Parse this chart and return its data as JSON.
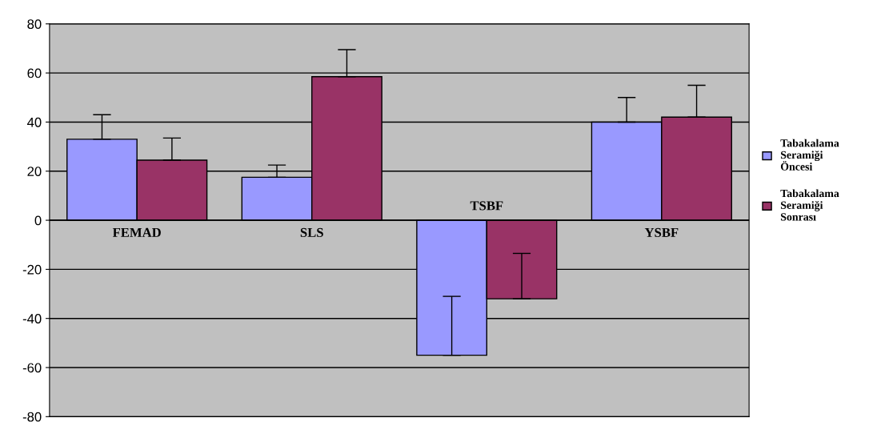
{
  "chart_data": {
    "type": "bar",
    "categories": [
      "FEMAD",
      "SLS",
      "TSBF",
      "YSBF"
    ],
    "series": [
      {
        "name": "Tabakalama Seramiği Öncesi",
        "color": "#9999ff",
        "values": [
          33,
          17.5,
          -55,
          40
        ],
        "errors": [
          [
            33,
            43
          ],
          [
            17.5,
            22.5
          ],
          [
            -55,
            -31
          ],
          [
            40,
            50
          ]
        ]
      },
      {
        "name": "Tabakalama Seramiği Sonrası",
        "color": "#993366",
        "values": [
          24.5,
          58.5,
          -32,
          42
        ],
        "errors": [
          [
            24.5,
            33.5
          ],
          [
            58.5,
            69.5
          ],
          [
            -32,
            -13.5
          ],
          [
            42,
            55
          ]
        ]
      }
    ],
    "ylim": [
      -80,
      80
    ],
    "yticks": [
      -80,
      -60,
      -40,
      -20,
      0,
      20,
      40,
      60,
      80
    ],
    "grid": "y",
    "legend": "right"
  }
}
